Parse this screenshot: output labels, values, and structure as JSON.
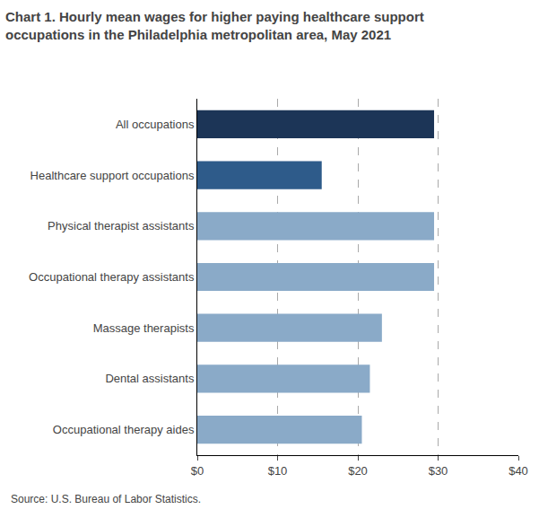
{
  "chart_data": {
    "type": "bar",
    "orientation": "horizontal",
    "title": "Chart 1. Hourly mean wages for higher paying healthcare support\noccupations in the Philadelphia metropolitan area, May 2021",
    "categories": [
      "Occupational therapy aides",
      "Dental assistants",
      "Massage therapists",
      "Occupational therapy assistants",
      "Physical therapist assistants",
      "Healthcare support occupations",
      "All occupations"
    ],
    "values": [
      20.5,
      21.5,
      23.0,
      29.5,
      29.5,
      15.5,
      29.5
    ],
    "colors": [
      "#8AAAC8",
      "#8AAAC8",
      "#8AAAC8",
      "#8AAAC8",
      "#8AAAC8",
      "#2E5B8A",
      "#1C3557"
    ],
    "xlim": [
      0,
      40
    ],
    "xticks": [
      {
        "value": 0,
        "label": "$0"
      },
      {
        "value": 10,
        "label": "$10"
      },
      {
        "value": 20,
        "label": "$20"
      },
      {
        "value": 30,
        "label": "$30"
      },
      {
        "value": 40,
        "label": "$40"
      }
    ],
    "grid": true,
    "annotations": [
      "Source: U.S. Bureau of Labor Statistics."
    ]
  }
}
